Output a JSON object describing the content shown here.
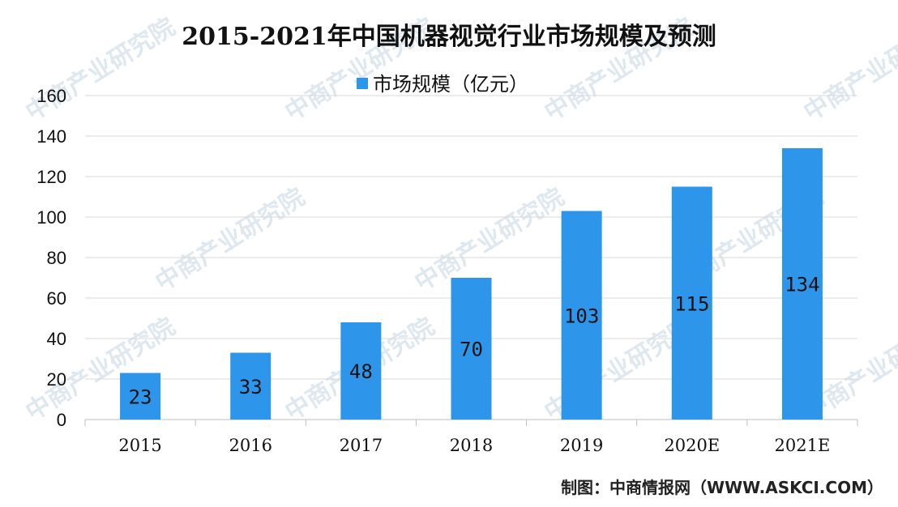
{
  "chart_data": {
    "type": "bar",
    "title": "2015-2021年中国机器视觉行业市场规模及预测",
    "categories": [
      "2015",
      "2016",
      "2017",
      "2018",
      "2019",
      "2020E",
      "2021E"
    ],
    "series": [
      {
        "name": "市场规模（亿元）",
        "values": [
          23,
          33,
          48,
          70,
          103,
          115,
          134
        ],
        "color": "#2e96ea"
      }
    ],
    "data_labels": [
      "23",
      "33",
      "48",
      "70",
      "103",
      "115",
      "134"
    ],
    "y_ticks": [
      "0",
      "20",
      "40",
      "60",
      "80",
      "100",
      "120",
      "140",
      "160"
    ],
    "ylim": [
      0,
      160
    ],
    "grid": true,
    "legend_position": "top-center"
  },
  "source": "制图：中商情报网（WWW.ASKCI.COM）",
  "watermark_text": "中商产业研究院",
  "colors": {
    "bar": "#2e96ea",
    "grid": "#d9d9d9",
    "axis": "#bfbfbf"
  }
}
